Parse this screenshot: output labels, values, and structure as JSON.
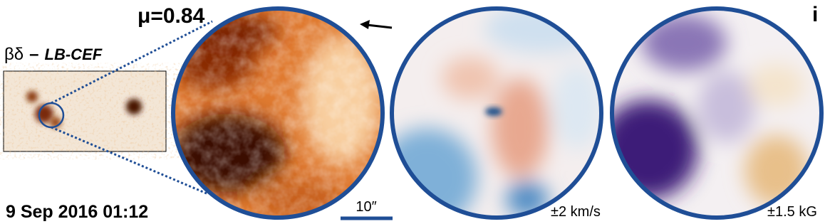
{
  "panel": {
    "label": "i",
    "mu": "μ=0.84",
    "class_symbol": "βδ",
    "separator": "–",
    "class_name": "LB-CEF",
    "date": "9 Sep 2016 01:12",
    "scale": "10″",
    "velocity_range": "±2 km/s",
    "field_range": "±1.5 kG"
  }
}
